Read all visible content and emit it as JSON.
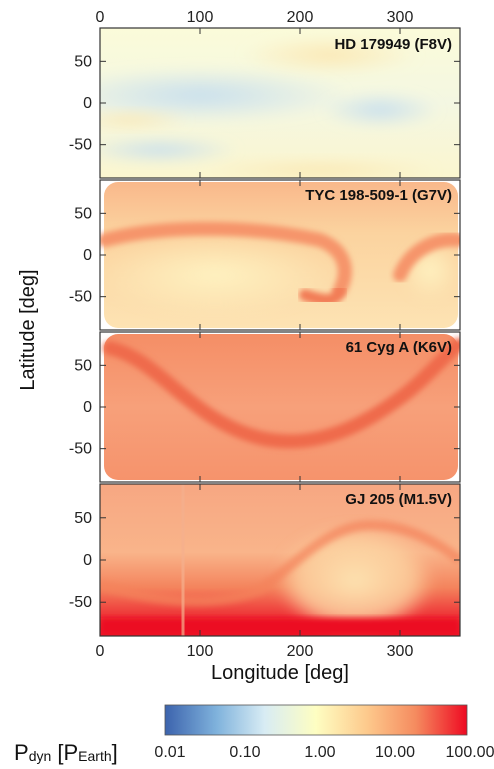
{
  "chart_data": {
    "type": "heatmap",
    "xlabel": "Longitude [deg]",
    "ylabel": "Latitude [deg]",
    "xlim": [
      0,
      360
    ],
    "ylim": [
      -90,
      90
    ],
    "x_ticks": [
      "0",
      "100",
      "200",
      "300"
    ],
    "x_tick_values": [
      0,
      100,
      200,
      300
    ],
    "y_ticks": [
      "50",
      "0",
      "-50"
    ],
    "y_tick_values": [
      50,
      0,
      -50
    ],
    "colorbar": {
      "scale": "log",
      "range": [
        0.01,
        100.0
      ],
      "ticks": [
        "0.01",
        "0.10",
        "1.00",
        "10.00",
        "100.00"
      ],
      "tick_values": [
        0.01,
        0.1,
        1.0,
        10.0,
        100.0
      ],
      "label_main": "P",
      "label_sub": "dyn",
      "label_unit_open": " [P",
      "label_unit_sub": "Earth",
      "label_unit_close": "]",
      "colors": [
        "#3c63ad",
        "#7fb2dc",
        "#d8ecf4",
        "#fefec2",
        "#fdc98c",
        "#f58b5f",
        "#ee0a22"
      ]
    },
    "panels": [
      {
        "title": "HD 179949 (F8V)",
        "base_pdyn": 1.0,
        "range": [
          0.3,
          3.0
        ]
      },
      {
        "title": "TYC 198-509-1 (G7V)",
        "base_pdyn": 5.0,
        "range": [
          2.0,
          25.0
        ]
      },
      {
        "title": "61 Cyg A (K6V)",
        "base_pdyn": 25.0,
        "range": [
          15.0,
          50.0
        ]
      },
      {
        "title": "GJ 205 (M1.5V)",
        "base_pdyn": 20.0,
        "range": [
          6.0,
          100.0
        ]
      }
    ]
  }
}
